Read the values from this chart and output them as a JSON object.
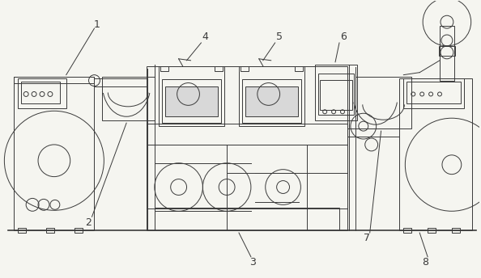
{
  "background_color": "#f5f5f0",
  "line_color": "#3a3a3a",
  "line_width": 0.7,
  "label_fontsize": 9,
  "figsize": [
    5.94,
    3.44
  ],
  "dpi": 100
}
